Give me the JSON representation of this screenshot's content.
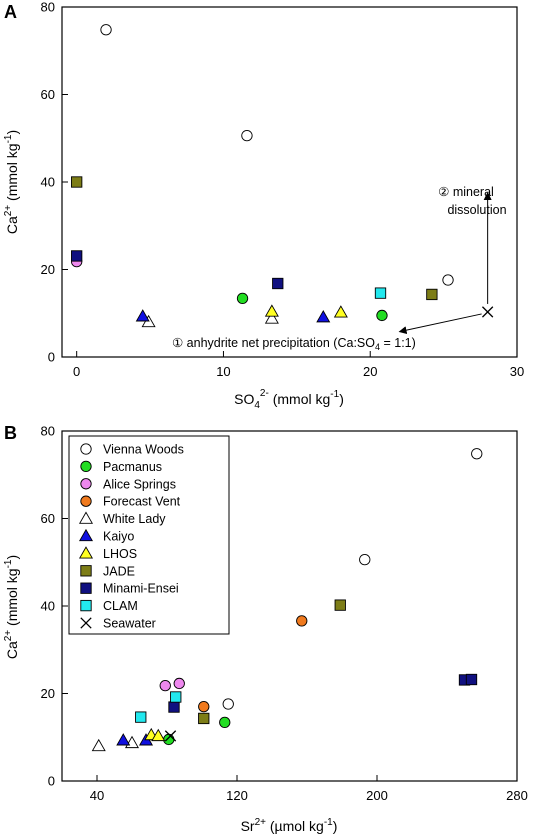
{
  "chart_data": [
    {
      "type": "scatter",
      "panel_label": "A",
      "xlabel": "SO4 2- (mmol kg-1)",
      "xlabel_parts": [
        "SO",
        "4",
        "2-",
        " (mmol kg",
        "-1",
        ")"
      ],
      "ylabel": "Ca 2+ (mmol kg-1)",
      "ylabel_parts": [
        "Ca",
        "2+",
        " (mmol kg",
        "-1",
        ")"
      ],
      "xlim": [
        -1,
        30
      ],
      "ylim": [
        0,
        80
      ],
      "xticks": [
        0,
        10,
        20,
        30
      ],
      "yticks": [
        0,
        20,
        40,
        60,
        80
      ],
      "annotations": {
        "mineral_line1": "② mineral",
        "mineral_line2": "dissolution",
        "anhydrite": "① anhydrite net precipitation (Ca:SO",
        "anhydrite_sub": "4",
        "anhydrite_end": " = 1:1)"
      },
      "series": [
        {
          "name": "Vienna Woods",
          "points": [
            [
              2.0,
              74.8
            ],
            [
              11.6,
              50.6
            ],
            [
              25.3,
              17.6
            ]
          ]
        },
        {
          "name": "Pacmanus",
          "points": [
            [
              11.3,
              13.4
            ],
            [
              20.8,
              9.5
            ]
          ]
        },
        {
          "name": "Alice Springs",
          "points": [
            [
              0.0,
              21.8
            ]
          ]
        },
        {
          "name": "White Lady",
          "points": [
            [
              4.9,
              8.0
            ],
            [
              13.3,
              8.8
            ]
          ]
        },
        {
          "name": "Kaiyo",
          "points": [
            [
              4.5,
              9.3
            ],
            [
              16.8,
              9.1
            ]
          ]
        },
        {
          "name": "LHOS",
          "points": [
            [
              13.3,
              10.4
            ],
            [
              18.0,
              10.2
            ]
          ]
        },
        {
          "name": "JADE",
          "points": [
            [
              0.0,
              40.0
            ],
            [
              24.2,
              14.3
            ]
          ]
        },
        {
          "name": "Minami-Ensei",
          "points": [
            [
              0.0,
              23.1
            ],
            [
              13.7,
              16.8
            ]
          ]
        },
        {
          "name": "CLAM",
          "points": [
            [
              20.7,
              14.6
            ]
          ]
        },
        {
          "name": "Seawater",
          "points": [
            [
              28.0,
              10.3
            ]
          ]
        }
      ]
    },
    {
      "type": "scatter",
      "panel_label": "B",
      "xlabel": "Sr 2+ (µmol kg-1)",
      "xlabel_parts": [
        "Sr",
        "2+",
        " (µmol kg",
        "-1",
        ")"
      ],
      "ylabel": "Ca 2+ (mmol kg-1)",
      "ylabel_parts": [
        "Ca",
        "2+",
        " (mmol kg",
        "-1",
        ")"
      ],
      "xlim": [
        20,
        280
      ],
      "ylim": [
        0,
        80
      ],
      "xticks": [
        40,
        120,
        200,
        280
      ],
      "yticks": [
        0,
        20,
        40,
        60,
        80
      ],
      "legend": {
        "position": "top-left",
        "entries": [
          "Vienna Woods",
          "Pacmanus",
          "Alice Springs",
          "Forecast Vent",
          "White Lady",
          "Kaiyo",
          "LHOS",
          "JADE",
          "Minami-Ensei",
          "CLAM",
          "Seawater"
        ]
      },
      "series": [
        {
          "name": "Vienna Woods",
          "points": [
            [
              115,
              17.6
            ],
            [
              193,
              50.6
            ],
            [
              257,
              74.8
            ]
          ]
        },
        {
          "name": "Pacmanus",
          "points": [
            [
              113,
              13.4
            ],
            [
              81,
              9.5
            ]
          ]
        },
        {
          "name": "Alice Springs",
          "points": [
            [
              79,
              21.8
            ],
            [
              87,
              22.3
            ]
          ]
        },
        {
          "name": "Forecast Vent",
          "points": [
            [
              101,
              17.0
            ],
            [
              157,
              36.6
            ]
          ]
        },
        {
          "name": "White Lady",
          "points": [
            [
              41,
              8.0
            ],
            [
              60,
              8.7
            ]
          ]
        },
        {
          "name": "Kaiyo",
          "points": [
            [
              55,
              9.3
            ],
            [
              68,
              9.3
            ]
          ]
        },
        {
          "name": "LHOS",
          "points": [
            [
              71,
              10.5
            ],
            [
              75,
              10.3
            ]
          ]
        },
        {
          "name": "JADE",
          "points": [
            [
              101,
              14.3
            ],
            [
              179,
              40.2
            ]
          ]
        },
        {
          "name": "Minami-Ensei",
          "points": [
            [
              84,
              16.9
            ],
            [
              250,
              23.1
            ],
            [
              254,
              23.2
            ]
          ]
        },
        {
          "name": "CLAM",
          "points": [
            [
              65,
              14.6
            ],
            [
              85,
              19.2
            ]
          ]
        },
        {
          "name": "Seawater",
          "points": [
            [
              82,
              10.3
            ]
          ]
        }
      ]
    }
  ],
  "markers": {
    "Vienna Woods": {
      "shape": "circle",
      "fill": "#ffffff"
    },
    "Pacmanus": {
      "shape": "circle",
      "fill": "#22dd22"
    },
    "Alice Springs": {
      "shape": "circle",
      "fill": "#ee88ee"
    },
    "Forecast Vent": {
      "shape": "circle",
      "fill": "#f07a1e"
    },
    "White Lady": {
      "shape": "triangle",
      "fill": "#ffffff"
    },
    "Kaiyo": {
      "shape": "triangle",
      "fill": "#1010e0"
    },
    "LHOS": {
      "shape": "triangle",
      "fill": "#ffff22"
    },
    "JADE": {
      "shape": "square",
      "fill": "#7d7d17"
    },
    "Minami-Ensei": {
      "shape": "square",
      "fill": "#101080"
    },
    "CLAM": {
      "shape": "square",
      "fill": "#22e8ee"
    },
    "Seawater": {
      "shape": "cross",
      "fill": "none"
    }
  }
}
